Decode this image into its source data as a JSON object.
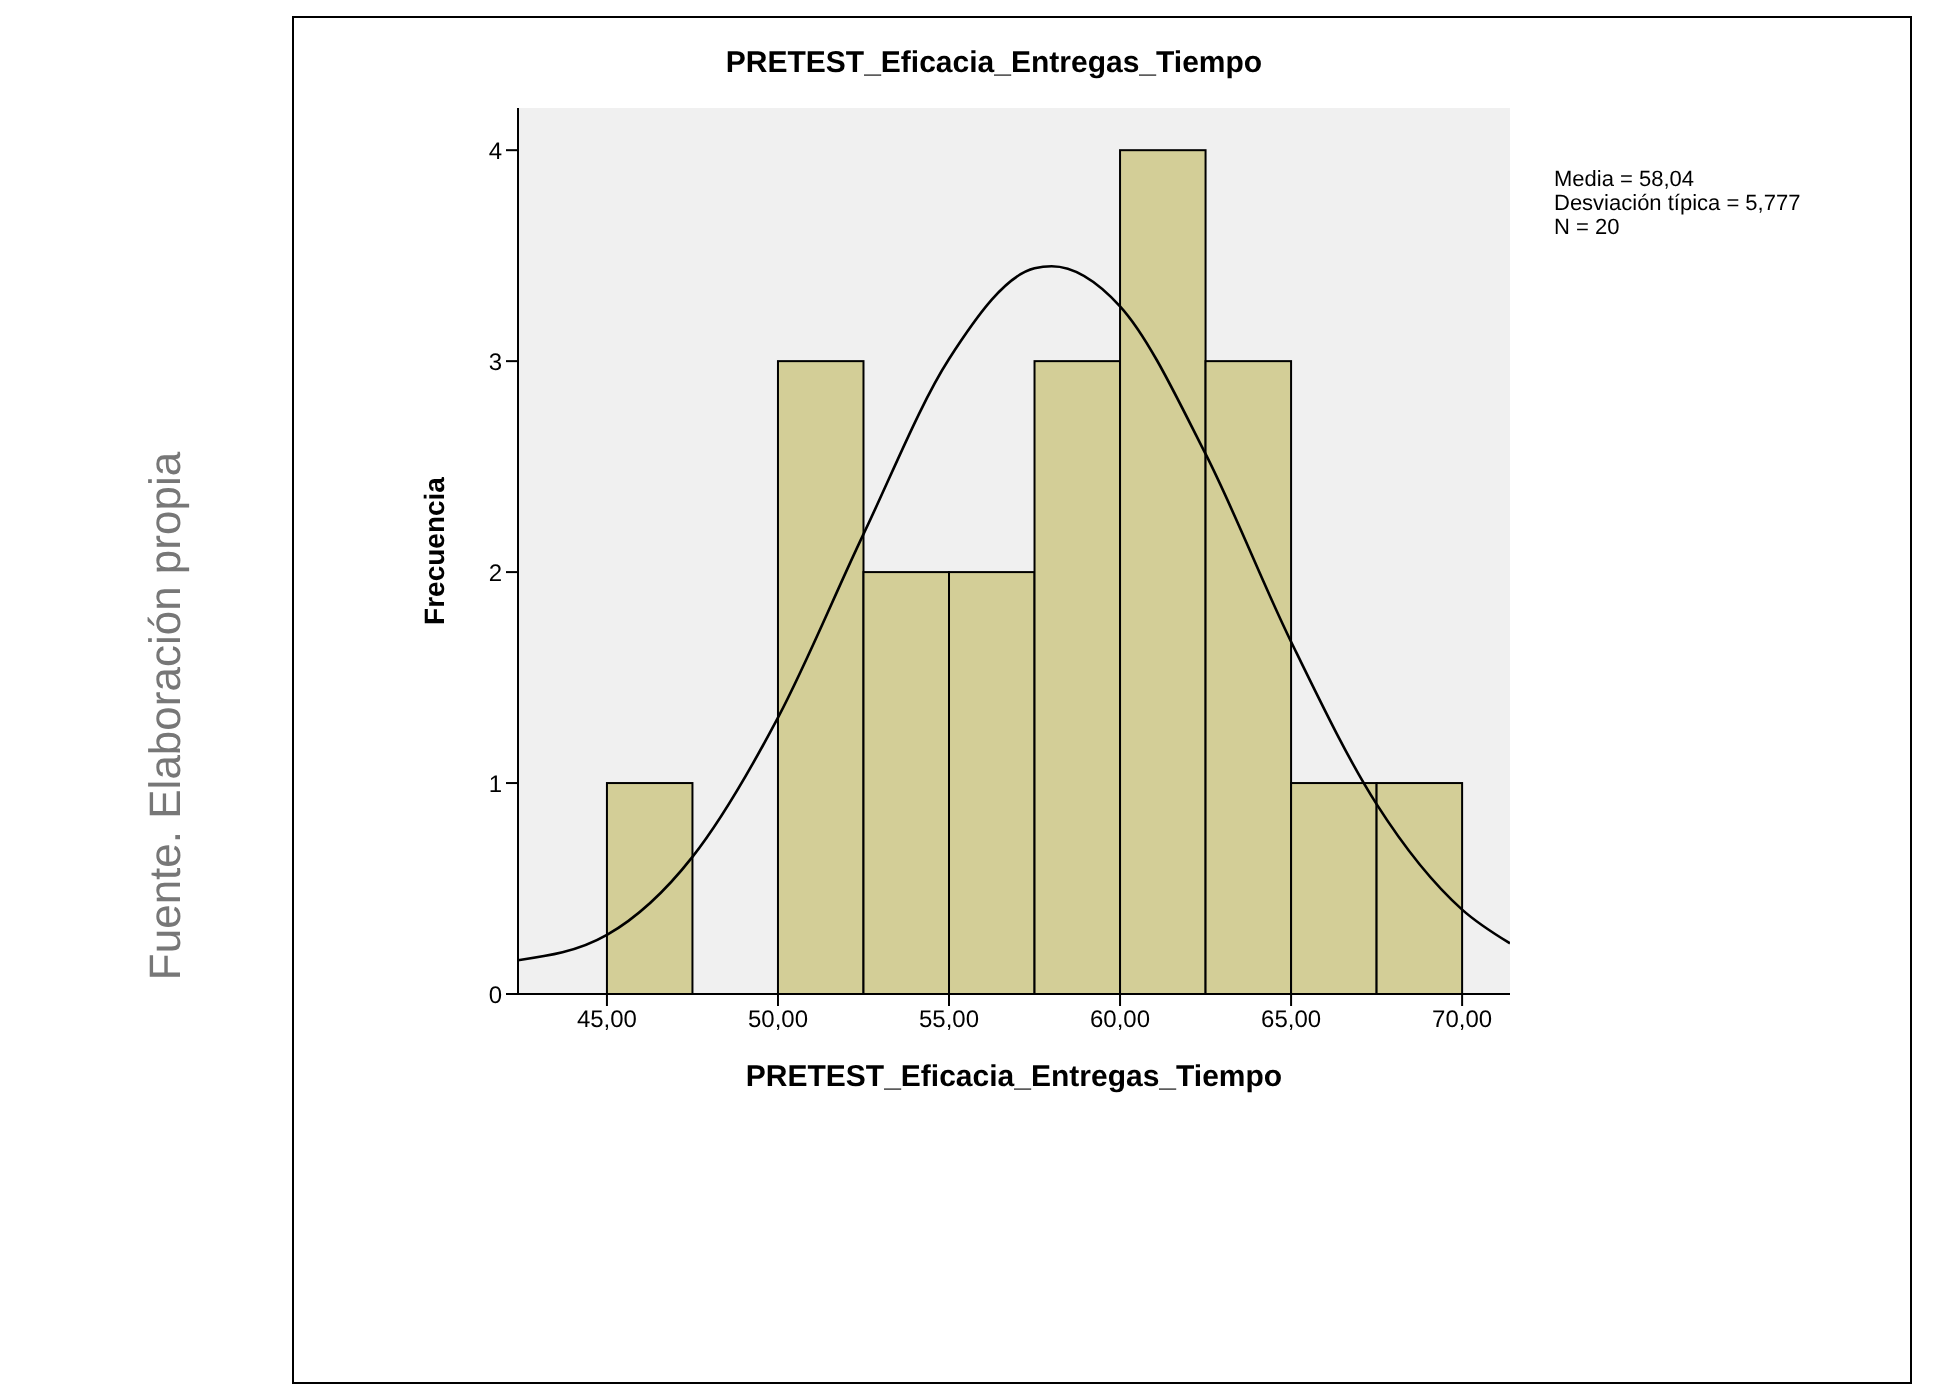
{
  "chart_data": {
    "type": "histogram",
    "title": "PRETEST_Eficacia_Entregas_Tiempo",
    "xlabel": "PRETEST_Eficacia_Entregas_Tiempo",
    "ylabel": "Frecuencia",
    "bins": [
      45,
      47.5,
      50,
      52.5,
      55,
      57.5,
      60,
      62.5,
      65,
      67.5,
      70
    ],
    "values": [
      1,
      0,
      3,
      2,
      2,
      3,
      4,
      3,
      1,
      1
    ],
    "color": "#d3ce97",
    "xlim": [
      42.4,
      71.4
    ],
    "ylim": [
      0,
      4.2
    ],
    "xticks": [
      {
        "value": 45,
        "label": "45,00"
      },
      {
        "value": 50,
        "label": "50,00"
      },
      {
        "value": 55,
        "label": "55,00"
      },
      {
        "value": 60,
        "label": "60,00"
      },
      {
        "value": 65,
        "label": "65,00"
      },
      {
        "value": 70,
        "label": "70,00"
      }
    ],
    "yticks": [
      0,
      1,
      2,
      3,
      4
    ],
    "grid": false,
    "legend": false,
    "series": [
      {
        "type": "line",
        "color": "#000000",
        "x": [
          42.4,
          45,
          47.5,
          50,
          52.5,
          55,
          57.5,
          58,
          60,
          62.5,
          65,
          67.5,
          70,
          71.4
        ],
        "values": [
          0.16,
          0.28,
          0.65,
          1.31,
          2.18,
          3.01,
          3.44,
          3.45,
          3.26,
          2.56,
          1.67,
          0.9,
          0.4,
          0.24
        ]
      }
    ],
    "annotations": [
      "Media = 58,04",
      "Desviación típica = 5,777",
      "N = 20",
      "Fuente. Elaboración propia"
    ]
  }
}
